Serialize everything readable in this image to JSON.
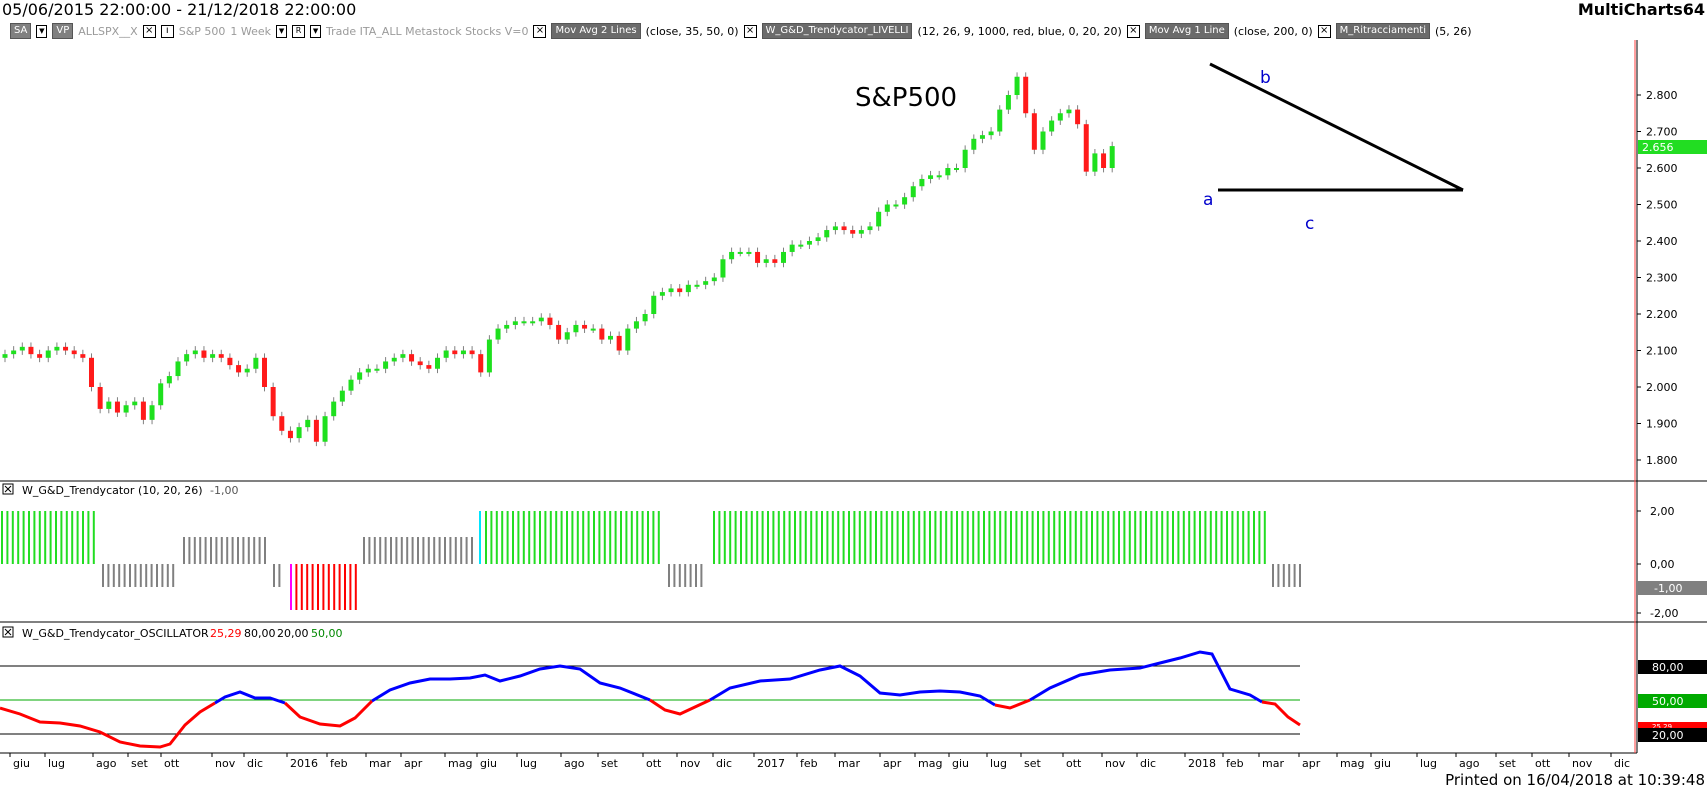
{
  "window": {
    "date_range": "05/06/2015 22:00:00 - 21/12/2018 22:00:00",
    "app_name": "MultiCharts64"
  },
  "toolbar": {
    "sa_label": "SA",
    "vp_label": "VP",
    "symbol": "ALLSPX__X",
    "symbol_desc": "S&P 500",
    "resolution": "1 Week",
    "session_flag": "R",
    "data_desc": "Trade  ITA_ALL  Metastock  Stocks  V=0",
    "studies": [
      {
        "name": "Mov Avg 2 Lines",
        "params": "(close, 35, 50, 0)"
      },
      {
        "name": "W_G&D_Trendycator_LIVELLI",
        "params": "(12, 26, 9, 1000, red, blue, 0, 20, 20)"
      },
      {
        "name": "Mov Avg 1 Line",
        "params": "(close, 200, 0)"
      },
      {
        "name": "M_Ritracciamenti",
        "params": "(5, 26)"
      }
    ]
  },
  "price_pane": {
    "annotation_title": "S&P500",
    "wave_labels": {
      "a": "a",
      "b": "b",
      "c": "c"
    },
    "current_price_label": "2.656",
    "y_ticks": [
      "2.800",
      "2.700",
      "2.600",
      "2.500",
      "2.400",
      "2.300",
      "2.200",
      "2.100",
      "2.000",
      "1.900",
      "1.800"
    ],
    "colors": {
      "up": "#1ee01e",
      "down": "#ff1a1a",
      "wick": "#808080",
      "trendline": "#000000",
      "wave_label": "#0000cc",
      "price_tag": "#22dd22"
    }
  },
  "trendycator_pane": {
    "name": "W_G&D_Trendycator",
    "params": "(10, 20, 26)",
    "value": "-1,00",
    "y_ticks": [
      "2,00",
      "0,00",
      "-2,00"
    ],
    "value_tag": "-1,00",
    "colors": {
      "green": "#22dd22",
      "gray": "#808080",
      "red": "#ff0000",
      "cyan": "#00e5ff",
      "magenta": "#ff00ff"
    }
  },
  "oscillator_pane": {
    "name": "W_G&D_Trendycator_OSCILLATOR",
    "values": [
      "25,29",
      "80,00",
      "20,00",
      "50,00"
    ],
    "value_colors": [
      "#ff0000",
      "#000000",
      "#000000",
      "#008800"
    ],
    "levels": {
      "upper": "80,00",
      "mid": "50,00",
      "lower": "20,00",
      "current": "25,29"
    },
    "colors": {
      "blue": "#0000ff",
      "red": "#ff0000",
      "level": "#000000",
      "mid": "#00aa00"
    }
  },
  "time_axis": {
    "labels": [
      "giu",
      "lug",
      "ago",
      "set",
      "ott",
      "nov",
      "dic",
      "2016",
      "feb",
      "mar",
      "apr",
      "mag",
      "giu",
      "lug",
      "ago",
      "set",
      "ott",
      "nov",
      "dic",
      "2017",
      "feb",
      "mar",
      "apr",
      "mag",
      "giu",
      "lug",
      "set",
      "ott",
      "nov",
      "dic",
      "2018",
      "feb",
      "mar",
      "apr",
      "mag",
      "giu",
      "lug",
      "ago",
      "set",
      "ott",
      "nov",
      "dic"
    ]
  },
  "footer": {
    "printed": "Printed on 16/04/2018 at 10:39:48"
  }
}
